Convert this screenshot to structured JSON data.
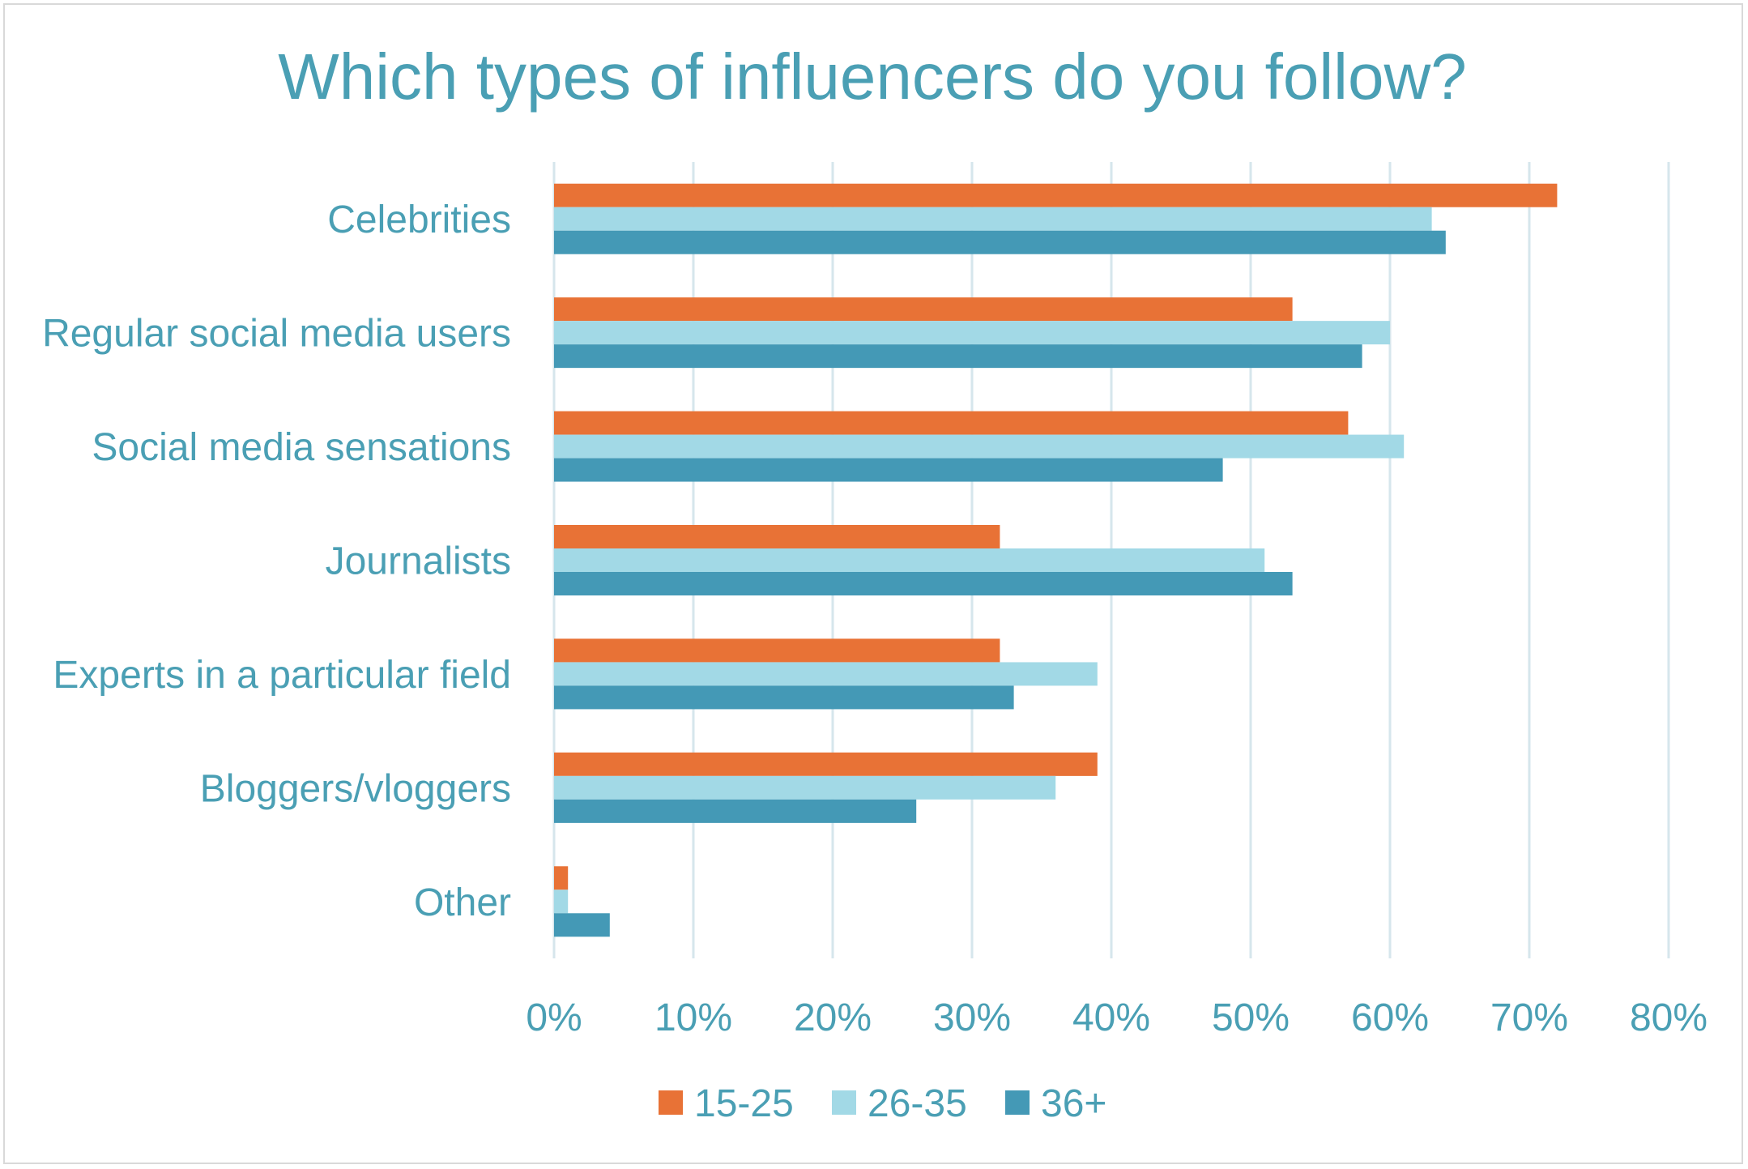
{
  "chart_data": {
    "type": "bar",
    "orientation": "horizontal",
    "title": "Which types of influencers do you follow?",
    "categories": [
      "Celebrities",
      "Regular social media users",
      "Social media sensations",
      "Journalists",
      "Experts in a particular field",
      "Bloggers/vloggers",
      "Other"
    ],
    "series": [
      {
        "name": "15-25",
        "color": "#e87236",
        "values": [
          72,
          53,
          57,
          32,
          32,
          39,
          1
        ]
      },
      {
        "name": "26-35",
        "color": "#a2d9e6",
        "values": [
          63,
          60,
          61,
          51,
          39,
          36,
          1
        ]
      },
      {
        "name": "36+",
        "color": "#4499b6",
        "values": [
          64,
          58,
          48,
          53,
          33,
          26,
          4
        ]
      }
    ],
    "xlim": [
      0,
      80
    ],
    "x_ticks": [
      "0%",
      "10%",
      "20%",
      "30%",
      "40%",
      "50%",
      "60%",
      "70%",
      "80%"
    ],
    "grid": true,
    "legend_position": "bottom"
  }
}
